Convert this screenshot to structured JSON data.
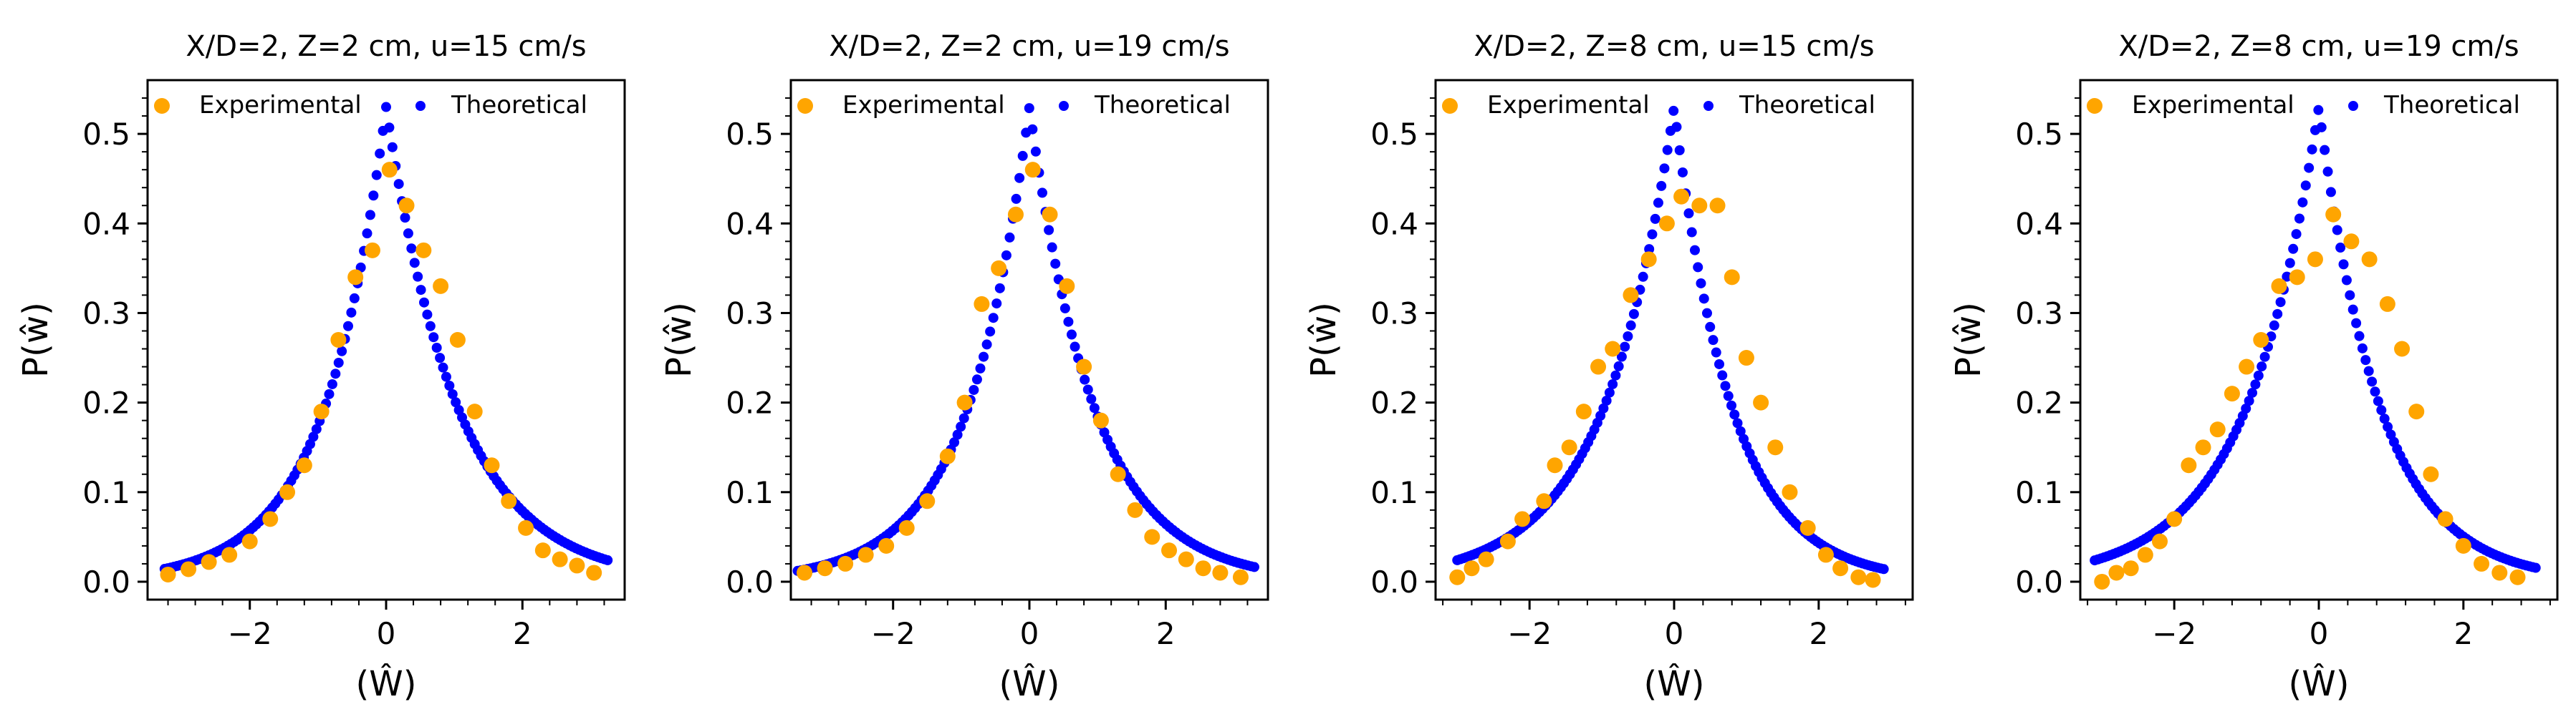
{
  "colors": {
    "experimental": "#FFA500",
    "theoretical": "#0000FF",
    "axes": "#000000"
  },
  "chart_data": [
    {
      "type": "scatter",
      "title": "X/D=2, Z=2 cm, u=15 cm/s",
      "xlabel": "(Ŵ)",
      "ylabel": "P(ŵ)",
      "xlim": [
        -3.5,
        3.5
      ],
      "ylim": [
        -0.02,
        0.56
      ],
      "xticks": [
        -2,
        0,
        2
      ],
      "xtick_labels": [
        "−2",
        "0",
        "2"
      ],
      "yticks": [
        0.0,
        0.1,
        0.2,
        0.3,
        0.4,
        0.5
      ],
      "ytick_labels": [
        "0.0",
        "0.1",
        "0.2",
        "0.3",
        "0.4",
        "0.5"
      ],
      "legend": [
        "Experimental",
        "Theoretical"
      ],
      "legend_position": "top",
      "theoretical": {
        "peak": 0.53,
        "decay_left": 0.9,
        "decay_right": 1.05,
        "x_range": [
          -3.25,
          3.25
        ]
      },
      "series": [
        {
          "name": "Experimental",
          "x": [
            -3.2,
            -2.9,
            -2.6,
            -2.3,
            -2.0,
            -1.7,
            -1.45,
            -1.2,
            -0.95,
            -0.7,
            -0.45,
            -0.2,
            0.05,
            0.3,
            0.55,
            0.8,
            1.05,
            1.3,
            1.55,
            1.8,
            2.05,
            2.3,
            2.55,
            2.8,
            3.05
          ],
          "y": [
            0.008,
            0.014,
            0.022,
            0.03,
            0.045,
            0.07,
            0.1,
            0.13,
            0.19,
            0.27,
            0.34,
            0.37,
            0.46,
            0.42,
            0.37,
            0.33,
            0.27,
            0.19,
            0.13,
            0.09,
            0.06,
            0.035,
            0.025,
            0.018,
            0.01
          ]
        }
      ]
    },
    {
      "type": "scatter",
      "title": "X/D=2, Z=2 cm, u=19 cm/s",
      "xlabel": "(Ŵ)",
      "ylabel": "P(ŵ)",
      "xlim": [
        -3.5,
        3.5
      ],
      "ylim": [
        -0.02,
        0.56
      ],
      "xticks": [
        -2,
        0,
        2
      ],
      "xtick_labels": [
        "−2",
        "0",
        "2"
      ],
      "yticks": [
        0.0,
        0.1,
        0.2,
        0.3,
        0.4,
        0.5
      ],
      "ytick_labels": [
        "0.0",
        "0.1",
        "0.2",
        "0.3",
        "0.4",
        "0.5"
      ],
      "legend": [
        "Experimental",
        "Theoretical"
      ],
      "legend_position": "top",
      "theoretical": {
        "peak": 0.53,
        "decay_left": 0.9,
        "decay_right": 0.95,
        "x_range": [
          -3.4,
          3.3
        ]
      },
      "series": [
        {
          "name": "Experimental",
          "x": [
            -3.3,
            -3.0,
            -2.7,
            -2.4,
            -2.1,
            -1.8,
            -1.5,
            -1.2,
            -0.95,
            -0.7,
            -0.45,
            -0.2,
            0.05,
            0.3,
            0.55,
            0.8,
            1.05,
            1.3,
            1.55,
            1.8,
            2.05,
            2.3,
            2.55,
            2.8,
            3.1
          ],
          "y": [
            0.01,
            0.015,
            0.02,
            0.03,
            0.04,
            0.06,
            0.09,
            0.14,
            0.2,
            0.31,
            0.35,
            0.41,
            0.46,
            0.41,
            0.33,
            0.24,
            0.18,
            0.12,
            0.08,
            0.05,
            0.035,
            0.025,
            0.015,
            0.01,
            0.005
          ]
        }
      ]
    },
    {
      "type": "scatter",
      "title": "X/D=2, Z=8 cm, u=15 cm/s",
      "xlabel": "(Ŵ)",
      "ylabel": "P(ŵ)",
      "xlim": [
        -3.3,
        3.3
      ],
      "ylim": [
        -0.02,
        0.56
      ],
      "xticks": [
        -2,
        0,
        2
      ],
      "xtick_labels": [
        "−2",
        "0",
        "2"
      ],
      "yticks": [
        0.0,
        0.1,
        0.2,
        0.3,
        0.4,
        0.5
      ],
      "ytick_labels": [
        "0.0",
        "0.1",
        "0.2",
        "0.3",
        "0.4",
        "0.5"
      ],
      "legend": [
        "Experimental",
        "Theoretical"
      ],
      "legend_position": "top",
      "theoretical": {
        "peak": 0.53,
        "decay_left": 0.97,
        "decay_right": 0.8,
        "x_range": [
          -3.0,
          2.9
        ]
      },
      "series": [
        {
          "name": "Experimental",
          "x": [
            -3.0,
            -2.8,
            -2.6,
            -2.3,
            -2.1,
            -1.8,
            -1.65,
            -1.45,
            -1.25,
            -1.05,
            -0.85,
            -0.6,
            -0.35,
            -0.1,
            0.1,
            0.35,
            0.6,
            0.8,
            1.0,
            1.2,
            1.4,
            1.6,
            1.85,
            2.1,
            2.3,
            2.55,
            2.75
          ],
          "y": [
            0.005,
            0.015,
            0.025,
            0.045,
            0.07,
            0.09,
            0.13,
            0.15,
            0.19,
            0.24,
            0.26,
            0.32,
            0.36,
            0.4,
            0.43,
            0.42,
            0.42,
            0.34,
            0.25,
            0.2,
            0.15,
            0.1,
            0.06,
            0.03,
            0.015,
            0.005,
            0.002
          ]
        }
      ]
    },
    {
      "type": "scatter",
      "title": "X/D=2, Z=8 cm, u=19 cm/s",
      "xlabel": "(Ŵ)",
      "ylabel": "P(ŵ)",
      "xlim": [
        -3.3,
        3.3
      ],
      "ylim": [
        -0.02,
        0.56
      ],
      "xticks": [
        -2,
        0,
        2
      ],
      "xtick_labels": [
        "−2",
        "0",
        "2"
      ],
      "yticks": [
        0.0,
        0.1,
        0.2,
        0.3,
        0.4,
        0.5
      ],
      "ytick_labels": [
        "0.0",
        "0.1",
        "0.2",
        "0.3",
        "0.4",
        "0.5"
      ],
      "legend": [
        "Experimental",
        "Theoretical"
      ],
      "legend_position": "top",
      "theoretical": {
        "peak": 0.53,
        "decay_left": 1.0,
        "decay_right": 0.85,
        "x_range": [
          -3.1,
          3.0
        ]
      },
      "series": [
        {
          "name": "Experimental",
          "x": [
            -3.0,
            -2.8,
            -2.6,
            -2.4,
            -2.2,
            -2.0,
            -1.8,
            -1.6,
            -1.4,
            -1.2,
            -1.0,
            -0.8,
            -0.55,
            -0.3,
            -0.05,
            0.2,
            0.45,
            0.7,
            0.95,
            1.15,
            1.35,
            1.55,
            1.75,
            2.0,
            2.25,
            2.5,
            2.75
          ],
          "y": [
            0.0,
            0.01,
            0.015,
            0.03,
            0.045,
            0.07,
            0.13,
            0.15,
            0.17,
            0.21,
            0.24,
            0.27,
            0.33,
            0.34,
            0.36,
            0.41,
            0.38,
            0.36,
            0.31,
            0.26,
            0.19,
            0.12,
            0.07,
            0.04,
            0.02,
            0.01,
            0.005
          ]
        }
      ]
    }
  ]
}
